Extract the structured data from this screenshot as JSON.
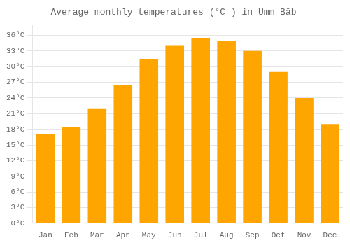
{
  "chart_data": {
    "type": "bar",
    "title": "Average monthly temperatures (°C ) in Umm Bāb",
    "categories": [
      "Jan",
      "Feb",
      "Mar",
      "Apr",
      "May",
      "Jun",
      "Jul",
      "Aug",
      "Sep",
      "Oct",
      "Nov",
      "Dec"
    ],
    "values": [
      17,
      18.5,
      22,
      26.5,
      31.5,
      34,
      35.5,
      35,
      33,
      29,
      24,
      19
    ],
    "color": "#FFA500",
    "ylim": [
      0,
      38
    ],
    "yticks": [
      {
        "value": 0,
        "label": "0°C"
      },
      {
        "value": 3,
        "label": "3°C"
      },
      {
        "value": 6,
        "label": "6°C"
      },
      {
        "value": 9,
        "label": "9°C"
      },
      {
        "value": 12,
        "label": "12°C"
      },
      {
        "value": 15,
        "label": "15°C"
      },
      {
        "value": 18,
        "label": "18°C"
      },
      {
        "value": 21,
        "label": "21°C"
      },
      {
        "value": 24,
        "label": "24°C"
      },
      {
        "value": 27,
        "label": "27°C"
      },
      {
        "value": 30,
        "label": "30°C"
      },
      {
        "value": 33,
        "label": "33°C"
      },
      {
        "value": 36,
        "label": "36°C"
      }
    ],
    "grid": true
  }
}
